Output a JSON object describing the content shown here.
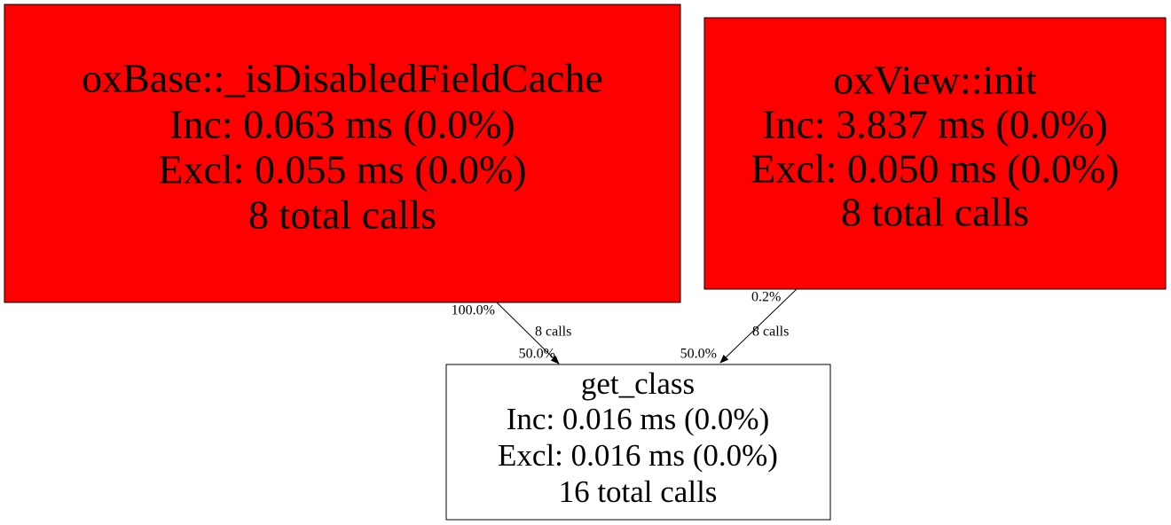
{
  "nodes": [
    {
      "lines": [
        "oxBase::_isDisabledFieldCache",
        "Inc: 0.063 ms (0.0%)",
        "Excl: 0.055 ms (0.0%)",
        "8 total calls"
      ]
    },
    {
      "lines": [
        "oxView::init",
        "Inc: 3.837 ms (0.0%)",
        "Excl: 0.050 ms (0.0%)",
        "8 total calls"
      ]
    },
    {
      "lines": [
        "get_class",
        "Inc: 0.016 ms (0.0%)",
        "Excl: 0.016 ms (0.0%)",
        "16 total calls"
      ]
    }
  ],
  "edges": [
    {
      "tail_label": "100.0%",
      "label": "8 calls",
      "head_label": "50.0%"
    },
    {
      "tail_label": "0.2%",
      "label": "8 calls",
      "head_label": "50.0%"
    }
  ]
}
